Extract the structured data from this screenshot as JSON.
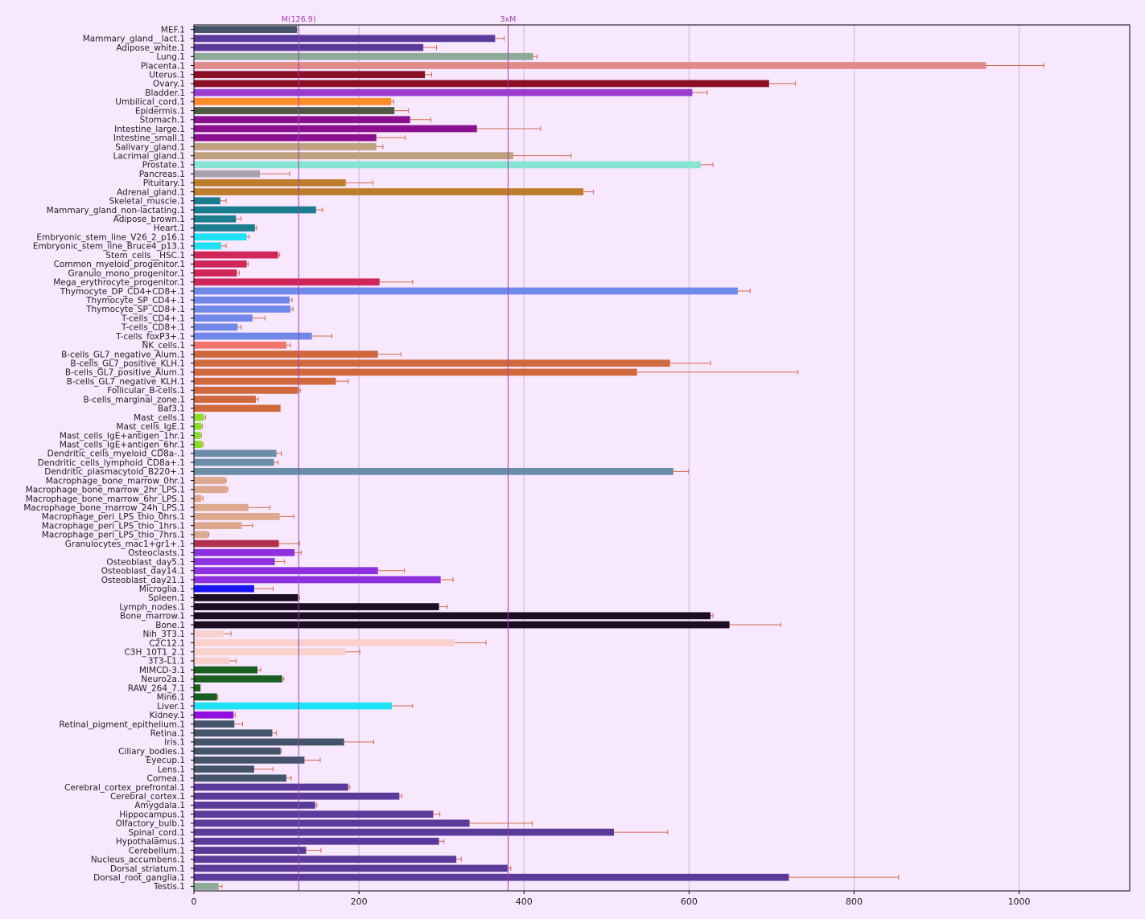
{
  "chart_data": {
    "type": "bar",
    "orientation": "horizontal",
    "xlim": [
      0,
      1134
    ],
    "xticks": [
      0,
      200,
      400,
      600,
      800,
      1000
    ],
    "grid": "vertical",
    "error_bar_color": "#d2694b",
    "markers": [
      {
        "label": "M(126.9)",
        "value": 126.9,
        "color": "#a040b0"
      },
      {
        "label": "3xM",
        "value": 380.7,
        "color": "#a040b0"
      }
    ],
    "bars": [
      {
        "label": "MEF.1",
        "value": 125,
        "error": 2,
        "color": "#44546a"
      },
      {
        "label": "Mammary_gland__lact.1",
        "value": 365,
        "error": 11,
        "color": "#5b3b9a"
      },
      {
        "label": "Adipose_white.1",
        "value": 278,
        "error": 16,
        "color": "#5b3b9a"
      },
      {
        "label": "Lung.1",
        "value": 411,
        "error": 5,
        "color": "#8faa98"
      },
      {
        "label": "Placenta.1",
        "value": 960,
        "error": 70,
        "color": "#e08a8a"
      },
      {
        "label": "Uterus.1",
        "value": 280,
        "error": 8,
        "color": "#8b1026"
      },
      {
        "label": "Ovary.1",
        "value": 697,
        "error": 32,
        "color": "#8b1026"
      },
      {
        "label": "Bladder.1",
        "value": 604,
        "error": 18,
        "color": "#9b3cd0"
      },
      {
        "label": "Umbilical_cord.1",
        "value": 239,
        "error": 3,
        "color": "#fb8c28"
      },
      {
        "label": "Epidermis.1",
        "value": 243,
        "error": 17,
        "color": "#4e5a44"
      },
      {
        "label": "Stomach.1",
        "value": 262,
        "error": 25,
        "color": "#8b1090"
      },
      {
        "label": "Intestine_large.1",
        "value": 343,
        "error": 77,
        "color": "#8b1090"
      },
      {
        "label": "Intestine_small.1",
        "value": 221,
        "error": 35,
        "color": "#8b1090"
      },
      {
        "label": "Salivary_gland.1",
        "value": 221,
        "error": 8,
        "color": "#bfa07f"
      },
      {
        "label": "Lacrimal_gland.1",
        "value": 387,
        "error": 70,
        "color": "#bfa07f"
      },
      {
        "label": "Prostate.1",
        "value": 614,
        "error": 15,
        "color": "#88e5d4"
      },
      {
        "label": "Pancreas.1",
        "value": 80,
        "error": 36,
        "color": "#a8a0ad"
      },
      {
        "label": "Pituitary.1",
        "value": 184,
        "error": 33,
        "color": "#be7d2c"
      },
      {
        "label": "Adrenal_gland.1",
        "value": 472,
        "error": 12,
        "color": "#be7d2c"
      },
      {
        "label": "Skeletal_muscle.1",
        "value": 32,
        "error": 7,
        "color": "#1a7d8e"
      },
      {
        "label": "Mammary_gland_non-lactating.1",
        "value": 148,
        "error": 8,
        "color": "#1a7d8e"
      },
      {
        "label": "Adipose_brown.1",
        "value": 51,
        "error": 6,
        "color": "#1a7d8e"
      },
      {
        "label": "Heart.1",
        "value": 74,
        "error": 2,
        "color": "#1a7d8e"
      },
      {
        "label": "Embryonic_stem_line_V26_2_p16.1",
        "value": 64,
        "error": 3,
        "color": "#1ee3f5"
      },
      {
        "label": "Embryonic_stem_line_Bruce4_p13.1",
        "value": 33,
        "error": 6,
        "color": "#1ee3f5"
      },
      {
        "label": "Stem_cells__HSC.1",
        "value": 102,
        "error": 2,
        "color": "#d0265a"
      },
      {
        "label": "Common_myeloid_progenitor.1",
        "value": 64,
        "error": 2,
        "color": "#d0265a"
      },
      {
        "label": "Granulo_mono_progenitor.1",
        "value": 52,
        "error": 3,
        "color": "#d0265a"
      },
      {
        "label": "Mega_erythrocyte_progenitor.1",
        "value": 225,
        "error": 40,
        "color": "#d0265a"
      },
      {
        "label": "Thymocyte_DP_CD4+CD8+.1",
        "value": 659,
        "error": 15,
        "color": "#7088e8"
      },
      {
        "label": "Thymocyte_SP_CD4+.1",
        "value": 116,
        "error": 3,
        "color": "#7088e8"
      },
      {
        "label": "Thymocyte_SP_CD8+.1",
        "value": 117,
        "error": 3,
        "color": "#7088e8"
      },
      {
        "label": "T-cells_CD4+.1",
        "value": 71,
        "error": 15,
        "color": "#7088e8"
      },
      {
        "label": "T-cells_CD8+.1",
        "value": 53,
        "error": 4,
        "color": "#7088e8"
      },
      {
        "label": "T-cells_foxP3+.1",
        "value": 143,
        "error": 24,
        "color": "#7088e8"
      },
      {
        "label": "NK_cells.1",
        "value": 112,
        "error": 5,
        "color": "#f0746a"
      },
      {
        "label": "B-cells_GL7_negative_Alum.1",
        "value": 223,
        "error": 28,
        "color": "#d0683e"
      },
      {
        "label": "B-cells_GL7_positive_KLH.1",
        "value": 577,
        "error": 49,
        "color": "#d0683e"
      },
      {
        "label": "B-cells_GL7_positive_Alum.1",
        "value": 537,
        "error": 195,
        "color": "#d0683e"
      },
      {
        "label": "B-cells_GL7_negative_KLH.1",
        "value": 172,
        "error": 15,
        "color": "#d0683e"
      },
      {
        "label": "Follicular_B-cells.1",
        "value": 126,
        "error": 3,
        "color": "#d0683e"
      },
      {
        "label": "B-cells_marginal_zone.1",
        "value": 75,
        "error": 3,
        "color": "#d0683e"
      },
      {
        "label": "Baf3.1",
        "value": 105,
        "error": 0,
        "color": "#d0683e"
      },
      {
        "label": "Mast_cells.1",
        "value": 12,
        "error": 2,
        "color": "#86e028"
      },
      {
        "label": "Mast_cells_IgE.1",
        "value": 9,
        "error": 1,
        "color": "#86e028"
      },
      {
        "label": "Mast_cells_IgE+antigen_1hr.1",
        "value": 8,
        "error": 1,
        "color": "#86e028"
      },
      {
        "label": "Mast_cells_IgE+antigen_6hr.1",
        "value": 10,
        "error": 1,
        "color": "#86e028"
      },
      {
        "label": "Dendritic_cells_myeloid_CD8a-.1",
        "value": 100,
        "error": 6,
        "color": "#6a8ea8"
      },
      {
        "label": "Dendritic_cells_lymphoid_CD8a+.1",
        "value": 97,
        "error": 5,
        "color": "#6a8ea8"
      },
      {
        "label": "Dendritic_plasmacytoid_B220+.1",
        "value": 581,
        "error": 18,
        "color": "#6a8ea8"
      },
      {
        "label": "Macrophage_bone_marrow_0hr.1",
        "value": 38,
        "error": 1,
        "color": "#dca88e"
      },
      {
        "label": "Macrophage_bone_marrow_2hr_LPS.1",
        "value": 40,
        "error": 1,
        "color": "#dca88e"
      },
      {
        "label": "Macrophage_bone_marrow_6hr_LPS.1",
        "value": 9,
        "error": 2,
        "color": "#dca88e"
      },
      {
        "label": "Macrophage_bone_marrow_24h_LPS.1",
        "value": 66,
        "error": 26,
        "color": "#dca88e"
      },
      {
        "label": "Macrophage_peri_LPS_thio_0hrs.1",
        "value": 104,
        "error": 17,
        "color": "#dca88e"
      },
      {
        "label": "Macrophage_peri_LPS_thio_1hrs.1",
        "value": 58,
        "error": 13,
        "color": "#dca88e"
      },
      {
        "label": "Macrophage_peri_LPS_thio_7hrs.1",
        "value": 17,
        "error": 1,
        "color": "#dca88e"
      },
      {
        "label": "Granulocytes_mac1+gr1+.1",
        "value": 103,
        "error": 25,
        "color": "#b03050"
      },
      {
        "label": "Osteoclasts.1",
        "value": 122,
        "error": 8,
        "color": "#8c30e0"
      },
      {
        "label": "Osteoblast_day5.1",
        "value": 98,
        "error": 12,
        "color": "#8c30e0"
      },
      {
        "label": "Osteoblast_day14.1",
        "value": 223,
        "error": 32,
        "color": "#8c30e0"
      },
      {
        "label": "Osteoblast_day21.1",
        "value": 299,
        "error": 15,
        "color": "#8c30e0"
      },
      {
        "label": "Microglia.1",
        "value": 73,
        "error": 23,
        "color": "#1414f0"
      },
      {
        "label": "Spleen.1",
        "value": 126,
        "error": 2,
        "color": "#1c0c24"
      },
      {
        "label": "Lymph_nodes.1",
        "value": 297,
        "error": 10,
        "color": "#1c0c24"
      },
      {
        "label": "Bone_marrow.1",
        "value": 626,
        "error": 3,
        "color": "#1c0c24"
      },
      {
        "label": "Bone.1",
        "value": 649,
        "error": 62,
        "color": "#1c0c24"
      },
      {
        "label": "Nih_3T3.1",
        "value": 36,
        "error": 9,
        "color": "#f8d0cc"
      },
      {
        "label": "C2C12.1",
        "value": 316,
        "error": 38,
        "color": "#f8d0cc"
      },
      {
        "label": "C3H_10T1_2.1",
        "value": 184,
        "error": 17,
        "color": "#f8d0cc"
      },
      {
        "label": "3T3-L1.1",
        "value": 43,
        "error": 8,
        "color": "#f8d0cc"
      },
      {
        "label": "MIMCD-3.1",
        "value": 77,
        "error": 4,
        "color": "#1a5e20"
      },
      {
        "label": "Neuro2a.1",
        "value": 107,
        "error": 2,
        "color": "#1a5e20"
      },
      {
        "label": "RAW_264_7.1",
        "value": 8,
        "error": 0,
        "color": "#1a5e20"
      },
      {
        "label": "Min6.1",
        "value": 28,
        "error": 1,
        "color": "#1a5e20"
      },
      {
        "label": "Liver.1",
        "value": 240,
        "error": 25,
        "color": "#1ee3f5"
      },
      {
        "label": "Kidney.1",
        "value": 48,
        "error": 2,
        "color": "#9010e0"
      },
      {
        "label": "Retinal_pigment_epithelium.1",
        "value": 49,
        "error": 10,
        "color": "#44546a"
      },
      {
        "label": "Retina.1",
        "value": 95,
        "error": 5,
        "color": "#44546a"
      },
      {
        "label": "Iris.1",
        "value": 182,
        "error": 36,
        "color": "#44546a"
      },
      {
        "label": "Ciliary_bodies.1",
        "value": 105,
        "error": 1,
        "color": "#44546a"
      },
      {
        "label": "Eyecup.1",
        "value": 134,
        "error": 19,
        "color": "#44546a"
      },
      {
        "label": "Lens.1",
        "value": 73,
        "error": 23,
        "color": "#44546a"
      },
      {
        "label": "Cornea.1",
        "value": 112,
        "error": 6,
        "color": "#44546a"
      },
      {
        "label": "Cerebral_cortex_prefrontal.1",
        "value": 187,
        "error": 2,
        "color": "#5b3b9a"
      },
      {
        "label": "Cerebral_cortex.1",
        "value": 249,
        "error": 3,
        "color": "#5b3b9a"
      },
      {
        "label": "Amygdala.1",
        "value": 147,
        "error": 2,
        "color": "#5b3b9a"
      },
      {
        "label": "Hippocampus.1",
        "value": 290,
        "error": 8,
        "color": "#5b3b9a"
      },
      {
        "label": "Olfactory_bulb.1",
        "value": 334,
        "error": 76,
        "color": "#5b3b9a"
      },
      {
        "label": "Spinal_cord.1",
        "value": 509,
        "error": 65,
        "color": "#5b3b9a"
      },
      {
        "label": "Hypothalamus.1",
        "value": 297,
        "error": 6,
        "color": "#5b3b9a"
      },
      {
        "label": "Cerebellum.1",
        "value": 136,
        "error": 18,
        "color": "#5b3b9a"
      },
      {
        "label": "Nucleus_accumbens.1",
        "value": 318,
        "error": 6,
        "color": "#5b3b9a"
      },
      {
        "label": "Dorsal_striatum.1",
        "value": 380,
        "error": 4,
        "color": "#5b3b9a"
      },
      {
        "label": "Dorsal_root_ganglia.1",
        "value": 721,
        "error": 133,
        "color": "#5b3b9a"
      },
      {
        "label": "Testis.1",
        "value": 30,
        "error": 4,
        "color": "#8faa98"
      }
    ]
  }
}
